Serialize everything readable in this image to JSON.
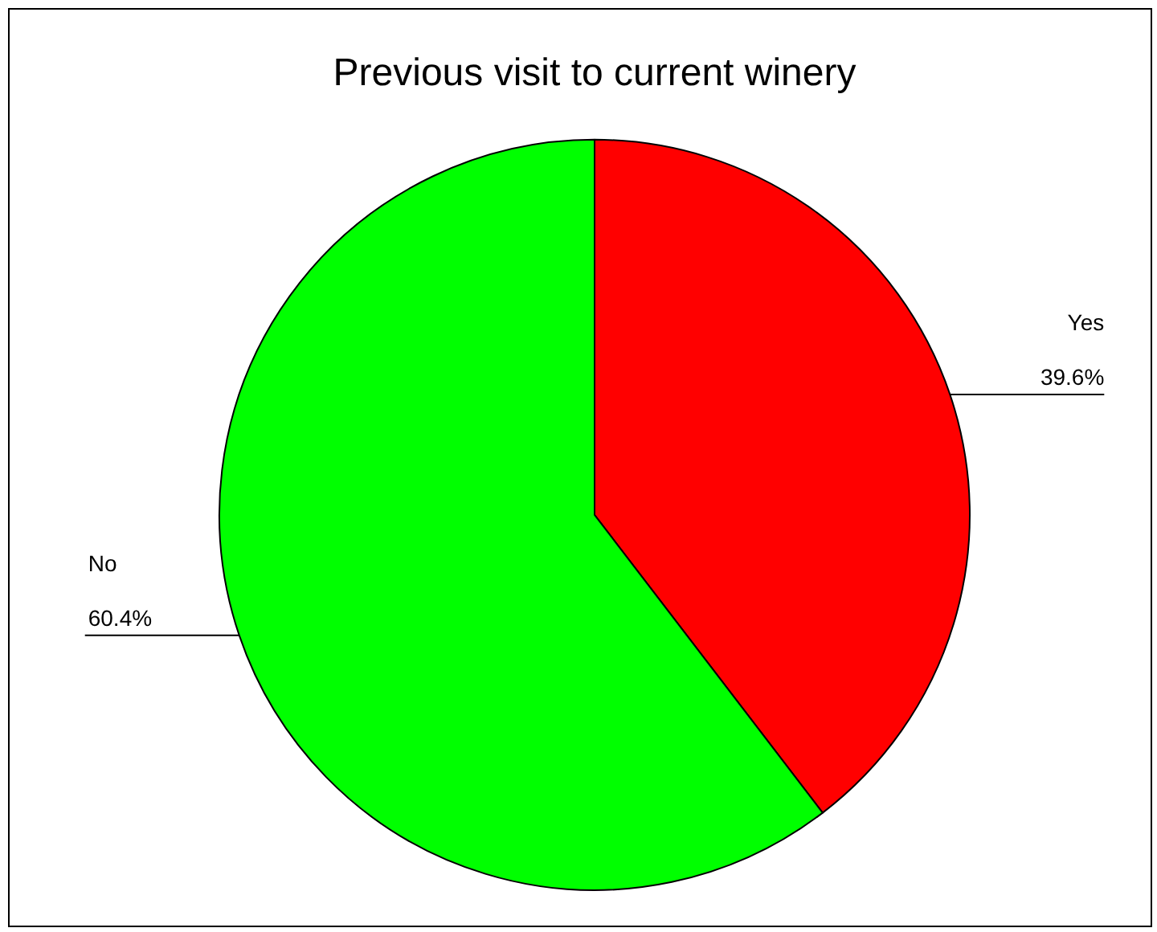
{
  "chart_data": {
    "type": "pie",
    "title": "Previous visit to current winery",
    "categories": [
      "Yes",
      "No"
    ],
    "values": [
      39.6,
      60.4
    ],
    "value_labels": [
      "39.6%",
      "60.4%"
    ],
    "colors": [
      "#ff0000",
      "#00ff00"
    ],
    "legend": false
  }
}
